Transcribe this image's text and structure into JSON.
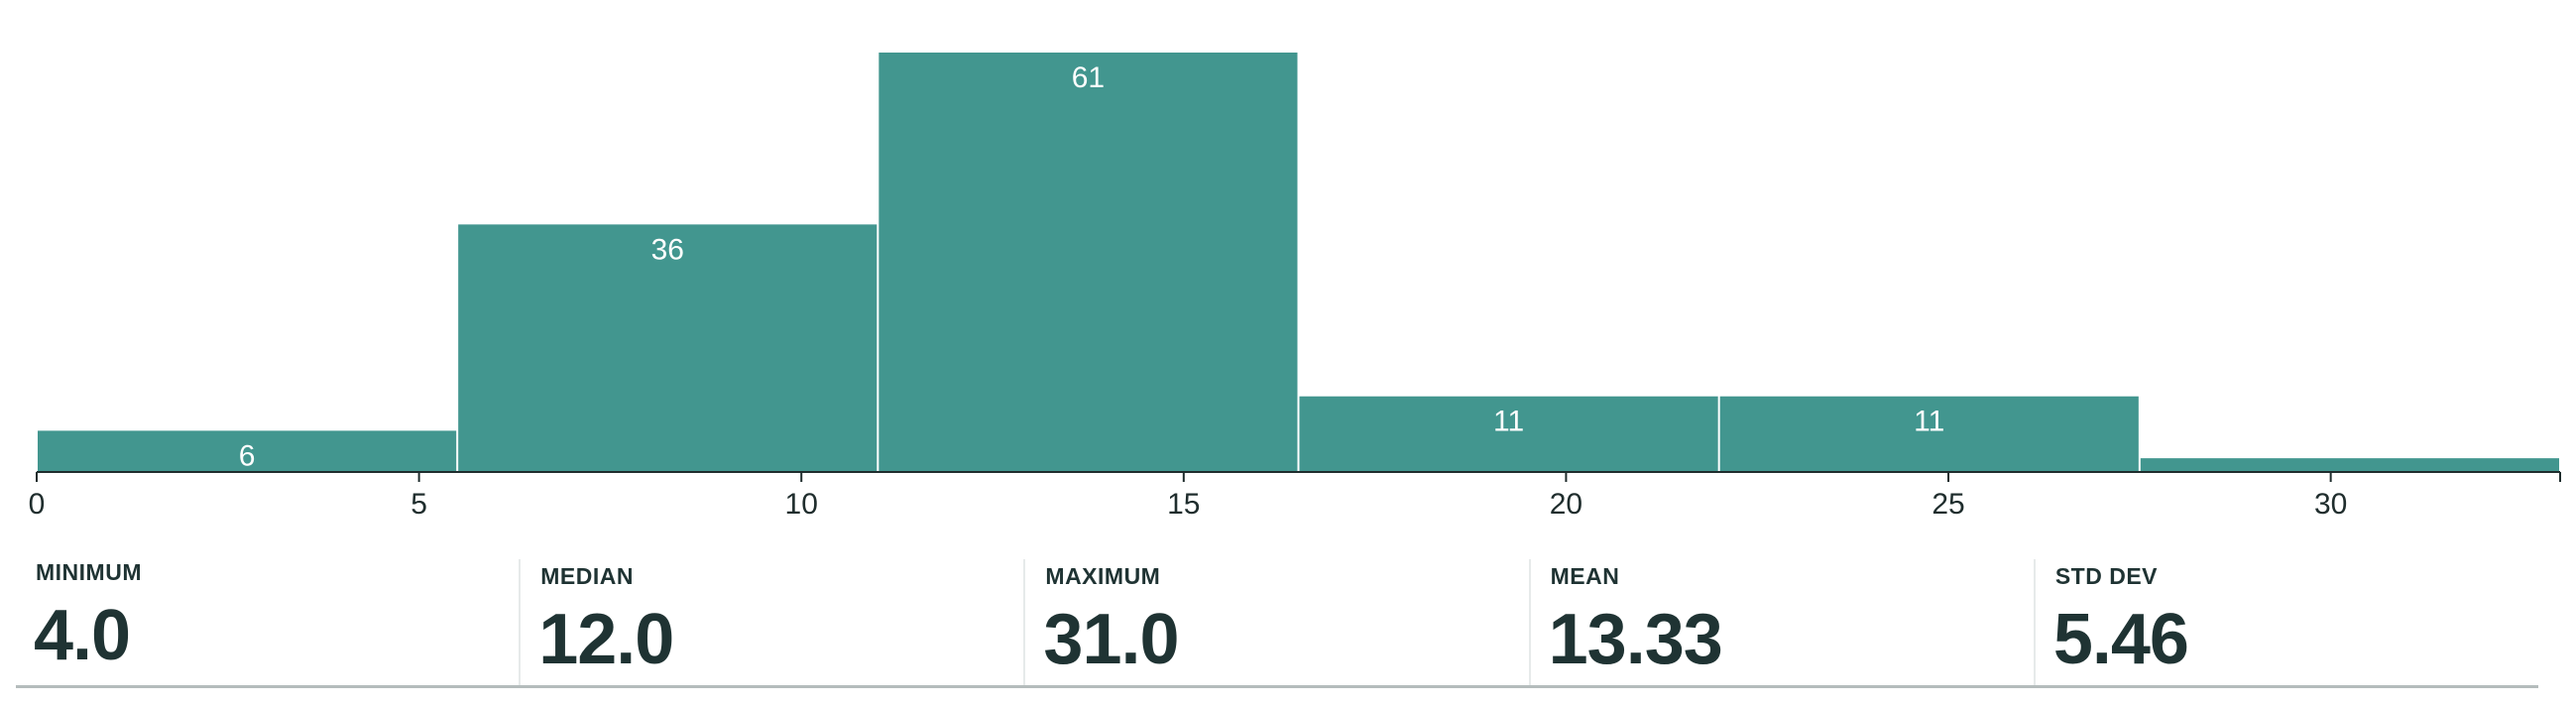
{
  "chart_data": {
    "type": "bar",
    "subtype": "histogram",
    "bins": [
      {
        "x0": 0.0,
        "x1": 5.5,
        "count": 6,
        "label": "6"
      },
      {
        "x0": 5.5,
        "x1": 11.0,
        "count": 36,
        "label": "36"
      },
      {
        "x0": 11.0,
        "x1": 16.5,
        "count": 61,
        "label": "61"
      },
      {
        "x0": 16.5,
        "x1": 22.0,
        "count": 11,
        "label": "11"
      },
      {
        "x0": 22.0,
        "x1": 27.5,
        "count": 11,
        "label": "11"
      },
      {
        "x0": 27.5,
        "x1": 33.0,
        "count": 2,
        "label": ""
      }
    ],
    "x_ticks": [
      "0",
      "5",
      "10",
      "15",
      "20",
      "25",
      "30"
    ],
    "xlim": [
      0,
      33
    ],
    "ylim": [
      0,
      61
    ],
    "bar_color": "#42968f",
    "grid": false,
    "title": "",
    "xlabel": "",
    "ylabel": ""
  },
  "stats": [
    {
      "label": "MINIMUM",
      "value": "4.0"
    },
    {
      "label": "MEDIAN",
      "value": "12.0"
    },
    {
      "label": "MAXIMUM",
      "value": "31.0"
    },
    {
      "label": "MEAN",
      "value": "13.33"
    },
    {
      "label": "STD DEV",
      "value": "5.46"
    }
  ]
}
